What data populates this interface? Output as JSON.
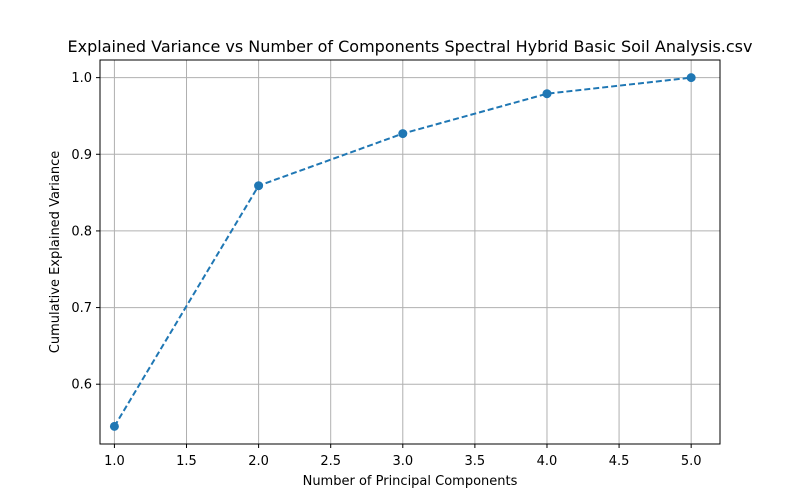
{
  "chart_data": {
    "type": "line",
    "title": "Explained Variance vs Number of Components Spectral Hybrid Basic Soil Analysis.csv",
    "xlabel": "Number of Principal Components",
    "ylabel": "Cumulative Explained Variance",
    "x": [
      1,
      2,
      3,
      4,
      5
    ],
    "series": [
      {
        "values": [
          0.545,
          0.859,
          0.927,
          0.979,
          1.0
        ]
      }
    ],
    "xlim": [
      0.9,
      5.2
    ],
    "ylim": [
      0.522,
      1.023
    ],
    "xticks": [
      "1.0",
      "1.5",
      "2.0",
      "2.5",
      "3.0",
      "3.5",
      "4.0",
      "4.5",
      "5.0"
    ],
    "yticks": [
      "0.6",
      "0.7",
      "0.8",
      "0.9",
      "1.0"
    ],
    "grid": true,
    "line_style": "dashed",
    "marker": "circle",
    "color": "#1f77b4"
  }
}
